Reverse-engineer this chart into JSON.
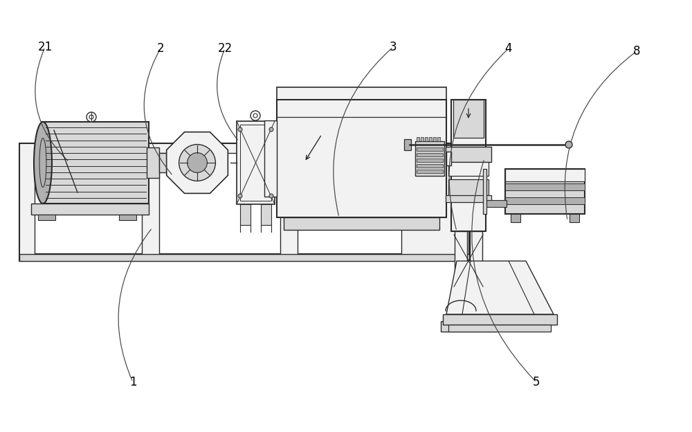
{
  "bg": "#ffffff",
  "lc": "#2a2a2a",
  "lc2": "#555555",
  "fl": "#f2f2f2",
  "fm": "#d8d8d8",
  "fd": "#b0b0b0",
  "fw": "#ffffff",
  "label_fs": 12,
  "labels": [
    "21",
    "2",
    "22",
    "3",
    "4",
    "8",
    "1",
    "5"
  ],
  "lx": [
    65,
    232,
    325,
    568,
    735,
    920,
    192,
    775
  ],
  "ly": [
    556,
    554,
    554,
    556,
    554,
    550,
    72,
    72
  ],
  "ax": [
    100,
    250,
    345,
    490,
    660,
    820,
    220,
    700
  ],
  "ay": [
    390,
    370,
    420,
    310,
    290,
    305,
    295,
    395
  ],
  "rads": [
    0.35,
    0.35,
    0.3,
    0.3,
    0.3,
    0.3,
    -0.3,
    -0.3
  ]
}
